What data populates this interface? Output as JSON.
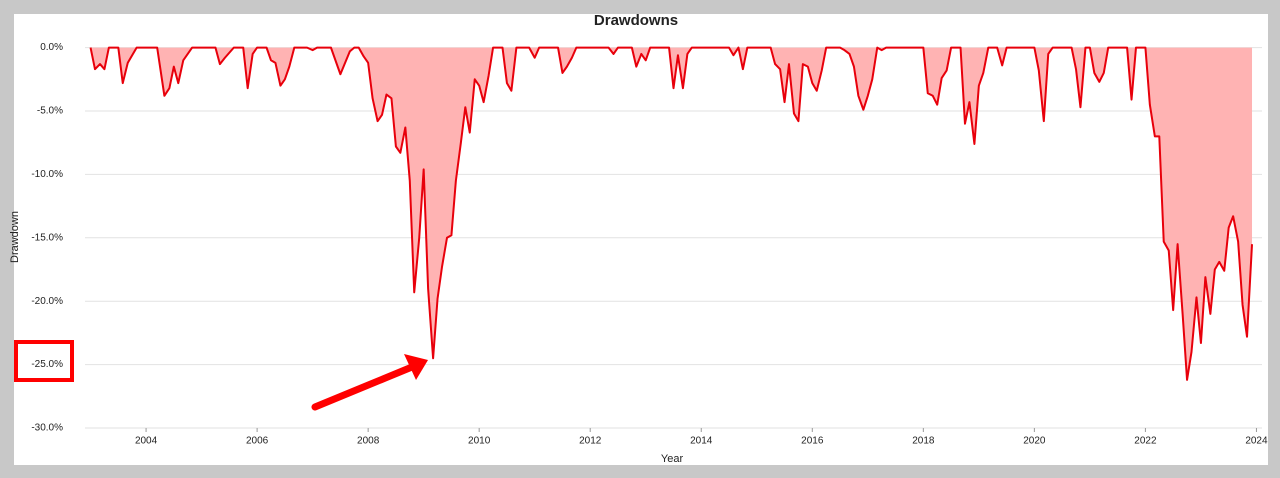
{
  "chart_data": {
    "type": "area",
    "title": "Drawdowns",
    "x_label": "Year",
    "y_label": "Drawdown",
    "color": "#e8000b",
    "fill_color": "#ffb3b3",
    "grid": true,
    "xlim": [
      2002.9,
      2024.1
    ],
    "ylim": [
      -30,
      0.6
    ],
    "xticks": [
      2004,
      2006,
      2008,
      2010,
      2012,
      2014,
      2016,
      2018,
      2020,
      2022,
      2024
    ],
    "yticks": [
      {
        "value": 0,
        "label": "0.0%"
      },
      {
        "value": -5,
        "label": "-5.0%"
      },
      {
        "value": -10,
        "label": "-10.0%"
      },
      {
        "value": -15,
        "label": "-15.0%"
      },
      {
        "value": -20,
        "label": "-20.0%"
      },
      {
        "value": -25,
        "label": "-25.0%"
      },
      {
        "value": -30,
        "label": "-30.0%"
      }
    ],
    "x": [
      2003.0,
      2003.08,
      2003.17,
      2003.25,
      2003.33,
      2003.5,
      2003.58,
      2003.67,
      2003.83,
      2004.2,
      2004.33,
      2004.42,
      2004.5,
      2004.58,
      2004.67,
      2004.83,
      2005.25,
      2005.33,
      2005.42,
      2005.58,
      2005.75,
      2005.83,
      2005.92,
      2006.0,
      2006.17,
      2006.25,
      2006.33,
      2006.42,
      2006.5,
      2006.58,
      2006.67,
      2006.9,
      2007.0,
      2007.08,
      2007.33,
      2007.5,
      2007.67,
      2007.75,
      2007.83,
      2007.92,
      2008.0,
      2008.08,
      2008.17,
      2008.25,
      2008.33,
      2008.42,
      2008.5,
      2008.58,
      2008.67,
      2008.75,
      2008.83,
      2008.92,
      2009.0,
      2009.08,
      2009.17,
      2009.25,
      2009.33,
      2009.42,
      2009.5,
      2009.58,
      2009.67,
      2009.75,
      2009.83,
      2009.92,
      2010.0,
      2010.08,
      2010.17,
      2010.25,
      2010.42,
      2010.5,
      2010.58,
      2010.67,
      2010.9,
      2011.0,
      2011.08,
      2011.42,
      2011.5,
      2011.58,
      2011.67,
      2011.75,
      2012.33,
      2012.42,
      2012.5,
      2012.75,
      2012.83,
      2012.92,
      2013.0,
      2013.08,
      2013.42,
      2013.5,
      2013.58,
      2013.67,
      2013.75,
      2013.83,
      2014.5,
      2014.58,
      2014.67,
      2014.75,
      2014.83,
      2015.25,
      2015.33,
      2015.42,
      2015.5,
      2015.58,
      2015.67,
      2015.75,
      2015.83,
      2015.92,
      2016.0,
      2016.08,
      2016.17,
      2016.25,
      2016.5,
      2016.58,
      2016.67,
      2016.75,
      2016.83,
      2016.92,
      2017.0,
      2017.08,
      2017.17,
      2017.25,
      2017.33,
      2018.0,
      2018.08,
      2018.17,
      2018.25,
      2018.33,
      2018.42,
      2018.5,
      2018.67,
      2018.75,
      2018.83,
      2018.92,
      2019.0,
      2019.08,
      2019.17,
      2019.33,
      2019.42,
      2019.5,
      2020.0,
      2020.08,
      2020.17,
      2020.25,
      2020.33,
      2020.67,
      2020.75,
      2020.83,
      2020.92,
      2021.0,
      2021.08,
      2021.17,
      2021.25,
      2021.33,
      2021.67,
      2021.75,
      2021.83,
      2022.0,
      2022.08,
      2022.17,
      2022.25,
      2022.33,
      2022.42,
      2022.5,
      2022.58,
      2022.67,
      2022.75,
      2022.83,
      2022.92,
      2023.0,
      2023.08,
      2023.17,
      2023.25,
      2023.33,
      2023.42,
      2023.5,
      2023.58,
      2023.67,
      2023.75,
      2023.83,
      2023.92
    ],
    "values": [
      0,
      -1.7,
      -1.3,
      -1.7,
      0,
      0,
      -2.8,
      -1.2,
      0,
      0,
      -3.8,
      -3.2,
      -1.5,
      -2.8,
      -1.0,
      0,
      0,
      -1.3,
      -0.8,
      0,
      0,
      -3.2,
      -0.5,
      0,
      0,
      -1.0,
      -1.2,
      -3.0,
      -2.5,
      -1.5,
      0,
      0,
      -0.2,
      0,
      0,
      -2.1,
      -0.3,
      0,
      0,
      -0.7,
      -1.2,
      -4.0,
      -5.8,
      -5.3,
      -3.7,
      -4.0,
      -7.8,
      -8.3,
      -6.3,
      -10.5,
      -19.3,
      -15.0,
      -9.6,
      -19.0,
      -24.5,
      -19.8,
      -17.3,
      -15.0,
      -14.8,
      -10.5,
      -7.5,
      -4.7,
      -6.7,
      -2.5,
      -3.0,
      -4.3,
      -2.2,
      0,
      0,
      -2.8,
      -3.4,
      0,
      0,
      -0.8,
      0,
      0,
      -2.0,
      -1.5,
      -0.8,
      0,
      0,
      -0.5,
      0,
      0,
      -1.5,
      -0.5,
      -1.0,
      0,
      0,
      -3.2,
      -0.6,
      -3.2,
      -0.5,
      0,
      0,
      -0.6,
      0,
      -1.7,
      0,
      0,
      -1.3,
      -1.7,
      -4.3,
      -1.3,
      -5.2,
      -5.8,
      -1.3,
      -1.5,
      -2.8,
      -3.4,
      -1.8,
      0,
      0,
      -0.2,
      -0.5,
      -1.5,
      -3.8,
      -4.9,
      -3.8,
      -2.5,
      0,
      -0.2,
      0,
      0,
      -3.6,
      -3.8,
      -4.5,
      -2.4,
      -1.8,
      0,
      0,
      -6.0,
      -4.3,
      -7.6,
      -3.0,
      -2.0,
      0,
      0,
      -1.4,
      0,
      0,
      -1.8,
      -5.8,
      -0.5,
      0,
      0,
      -1.7,
      -4.7,
      0,
      0,
      -2.0,
      -2.7,
      -2.0,
      0,
      0,
      -4.1,
      0,
      0,
      -4.5,
      -7.0,
      -7.0,
      -15.3,
      -16.0,
      -20.7,
      -15.5,
      -21.0,
      -26.2,
      -24.0,
      -19.7,
      -23.3,
      -18.1,
      -21.0,
      -17.5,
      -16.9,
      -17.6,
      -14.2,
      -13.3,
      -15.3,
      -20.3,
      -22.8,
      -15.5
    ]
  }
}
